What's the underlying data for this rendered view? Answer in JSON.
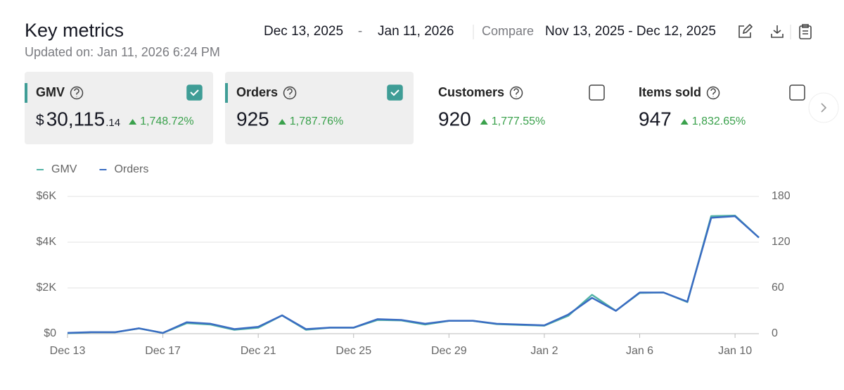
{
  "header": {
    "title": "Key metrics",
    "updated": "Updated on: Jan 11, 2026 6:24 PM",
    "date_start": "Dec 13, 2025",
    "date_separator": "-",
    "date_end": "Jan 11, 2026",
    "compare_label": "Compare",
    "compare_range": "Nov 13, 2025 - Dec 12, 2025"
  },
  "metrics": [
    {
      "label": "GMV",
      "checked": true,
      "prefix": "$",
      "value": "30,115",
      "suffix": ".14",
      "change": "1,748.72%"
    },
    {
      "label": "Orders",
      "checked": true,
      "value": "925",
      "change": "1,787.76%"
    },
    {
      "label": "Customers",
      "checked": false,
      "value": "920",
      "change": "1,777.55%"
    },
    {
      "label": "Items sold",
      "checked": false,
      "value": "947",
      "change": "1,832.65%"
    }
  ],
  "chart_data": {
    "type": "line",
    "categories": [
      "Dec 13",
      null,
      null,
      null,
      "Dec 17",
      null,
      null,
      null,
      "Dec 21",
      null,
      null,
      null,
      "Dec 25",
      null,
      null,
      null,
      "Dec 29",
      null,
      null,
      null,
      "Jan 2",
      null,
      null,
      null,
      "Jan 6",
      null,
      null,
      null,
      "Jan 10",
      null
    ],
    "series": [
      {
        "name": "GMV",
        "color": "#52b3a6",
        "axis": "y",
        "values": [
          20,
          60,
          60,
          230,
          30,
          460,
          400,
          170,
          260,
          800,
          170,
          260,
          260,
          600,
          580,
          400,
          560,
          560,
          420,
          380,
          350,
          780,
          1700,
          1000,
          1780,
          1800,
          1380,
          5140,
          5160,
          4200
        ]
      },
      {
        "name": "Orders",
        "color": "#3a6cc2",
        "axis": "y2",
        "values": [
          1,
          2,
          2,
          7,
          1,
          15,
          13,
          6,
          9,
          24,
          6,
          8,
          8,
          19,
          18,
          13,
          17,
          17,
          13,
          12,
          11,
          25,
          47,
          30,
          54,
          54,
          42,
          152,
          154,
          126
        ]
      }
    ],
    "ylim": [
      0,
      6000
    ],
    "yticks": [
      {
        "value": 0,
        "label": "$0"
      },
      {
        "value": 2000,
        "label": "$2K"
      },
      {
        "value": 4000,
        "label": "$4K"
      },
      {
        "value": 6000,
        "label": "$6K"
      }
    ],
    "y2lim": [
      0,
      180
    ],
    "y2ticks": [
      0,
      60,
      120,
      180
    ],
    "grid": true,
    "legend": "top-left"
  }
}
